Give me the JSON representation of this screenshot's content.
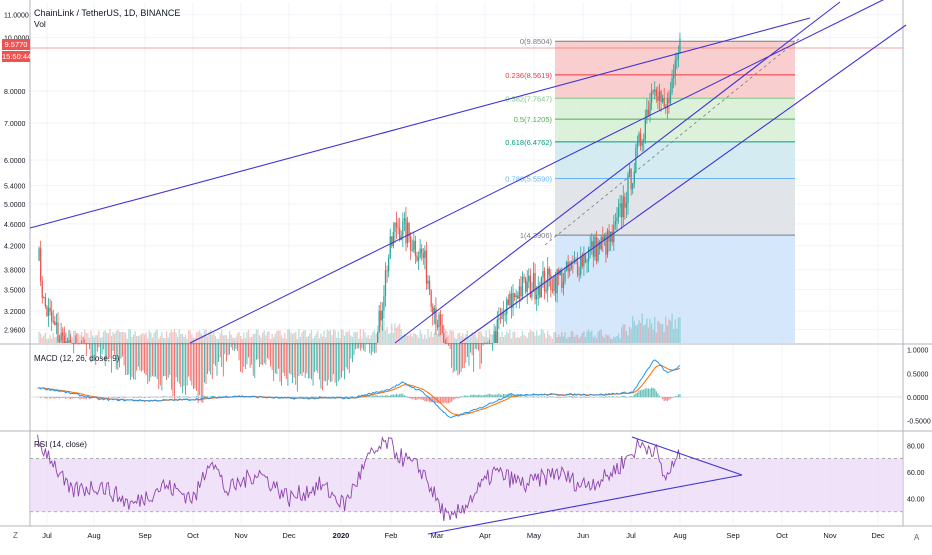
{
  "header": {
    "symbol": "ChainLink / TetherUS, 1D, BINANCE",
    "vol": "Vol"
  },
  "price_badges": {
    "last": "9.5770",
    "countdown": "15:50:44"
  },
  "macd_label": "MACD (12, 26, close, 9)",
  "rsi_label": "RSI (14, close)",
  "bottom": {
    "left_btn": "Z",
    "right_btn": "A"
  },
  "colors": {
    "up": "#26a69a",
    "down": "#ef5350",
    "trend": "#3f33d6",
    "macd": "#2196f3",
    "signal": "#ff6d00",
    "rsi": "#8e44ad",
    "rsi_band": "#e8d6f7"
  },
  "chart_data": [
    {
      "type": "candlestick",
      "title": "ChainLink / TetherUS, 1D, BINANCE",
      "scale": "log",
      "y_ticks": [
        "11.0000",
        "10.0000",
        "8.0000",
        "7.0000",
        "6.0000",
        "5.4000",
        "5.0000",
        "4.6000",
        "4.2000",
        "3.8000",
        "3.5000",
        "3.2000",
        "2.9600"
      ],
      "x_ticks": [
        "Jul",
        "Aug",
        "Sep",
        "Oct",
        "Nov",
        "Dec",
        "2020",
        "Feb",
        "Mar",
        "Apr",
        "May",
        "Jun",
        "Jul",
        "Aug",
        "Sep",
        "Oct",
        "Nov",
        "Dec"
      ],
      "ylim": [
        2.8,
        11.6
      ],
      "last_price": 9.577,
      "fib_retracement": [
        {
          "label": "0(9.8504)",
          "ratio": 0,
          "value": 9.8504,
          "color": "#787b86",
          "fill": "#f7c9c9"
        },
        {
          "label": "0.236(8.5619)",
          "ratio": 0.236,
          "value": 8.5619,
          "color": "#f23645",
          "fill": "#f7c9c9"
        },
        {
          "label": "0.382(7.7647)",
          "ratio": 0.382,
          "value": 7.7647,
          "color": "#81c784",
          "fill": "#d7f0d6"
        },
        {
          "label": "0.5(7.1205)",
          "ratio": 0.5,
          "value": 7.1205,
          "color": "#4caf50",
          "fill": "#d7f0d6"
        },
        {
          "label": "0.618(6.4762)",
          "ratio": 0.618,
          "value": 6.4762,
          "color": "#089981",
          "fill": "#cfe9ef"
        },
        {
          "label": "0.786(5.5590)",
          "ratio": 0.786,
          "value": 5.559,
          "color": "#64b5f6",
          "fill": "#dfe7fb"
        },
        {
          "label": "1(4.3906)",
          "ratio": 1,
          "value": 4.3906,
          "color": "#787b86",
          "fill": "#d0e4fb"
        }
      ]
    },
    {
      "type": "line",
      "title": "MACD (12, 26, close, 9)",
      "y_ticks": [
        "1.0000",
        "0.5000",
        "0.0000",
        "-0.5000"
      ],
      "ylim": [
        -0.7,
        1.1
      ],
      "series": [
        {
          "name": "MACD"
        },
        {
          "name": "Signal"
        },
        {
          "name": "Histogram"
        }
      ]
    },
    {
      "type": "line",
      "title": "RSI (14, close)",
      "y_ticks": [
        "80.00",
        "60.00",
        "40.00"
      ],
      "ylim": [
        20,
        90
      ],
      "bands": [
        30,
        70
      ],
      "series": [
        {
          "name": "RSI"
        }
      ]
    }
  ]
}
